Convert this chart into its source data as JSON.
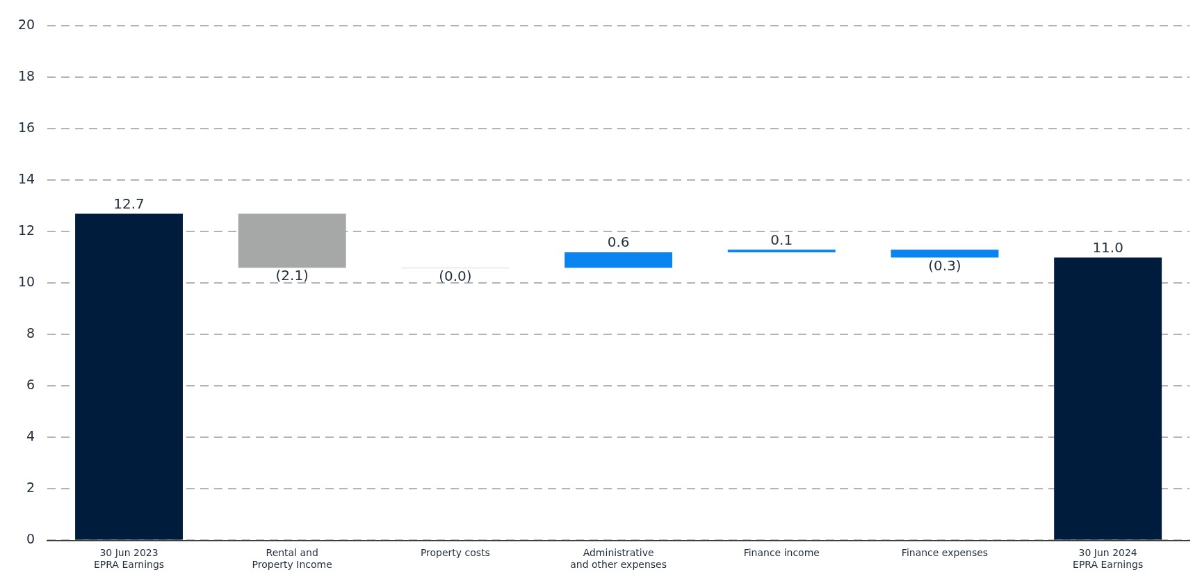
{
  "chart_data": {
    "type": "bar",
    "categories": [
      "30 Jun 2023\nEPRA Earnings",
      "Rental and\nProperty Income",
      "Property costs",
      "Administrative\nand other expenses",
      "Finance income",
      "Finance expenses",
      "30 Jun 2024\nEPRA Earnings"
    ],
    "values": [
      12.7,
      -2.1,
      -0.02,
      0.6,
      0.1,
      -0.3,
      11.0
    ],
    "base": [
      0,
      12.7,
      10.6,
      10.6,
      11.2,
      11.3,
      0
    ],
    "colors": [
      "#001c3d",
      "#a6a8a8",
      "#c8c8c8",
      "#0a84f0",
      "#0a84f0",
      "#0a84f0",
      "#001c3d"
    ],
    "value_labels": [
      "12.7",
      "(2.1)",
      "(0.0)",
      "0.6",
      "0.1",
      "(0.3)",
      "11.0"
    ],
    "ylim": [
      0,
      20
    ],
    "yticks": [
      0,
      2,
      4,
      6,
      8,
      10,
      12,
      14,
      16,
      18,
      20
    ],
    "grid": "y",
    "legend": false
  }
}
